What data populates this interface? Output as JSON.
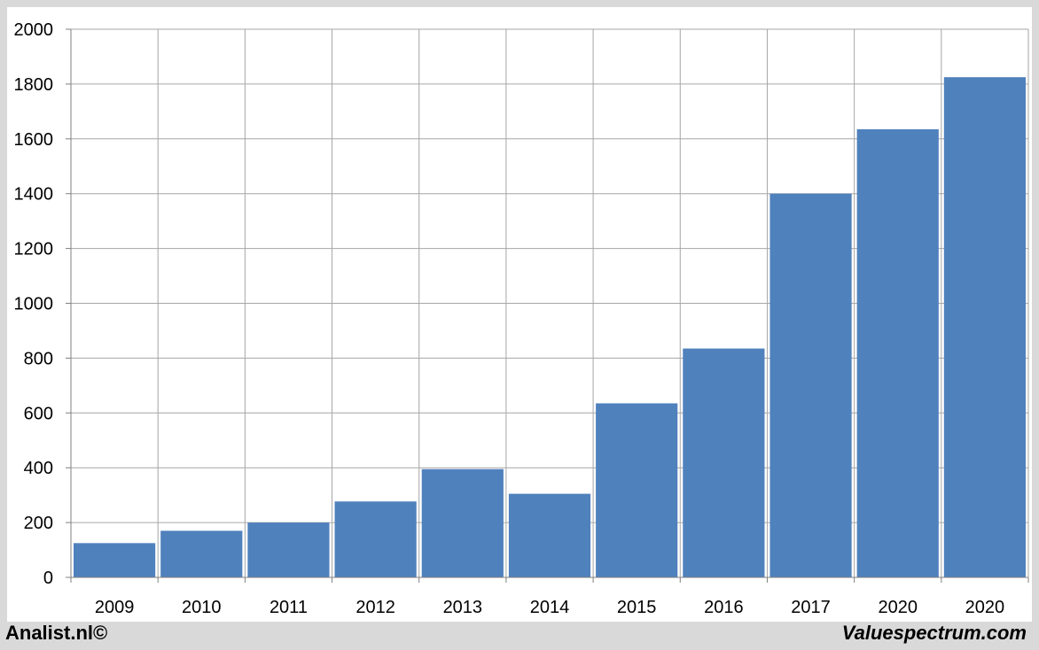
{
  "chart_data": {
    "type": "bar",
    "categories": [
      "2009",
      "2010",
      "2011",
      "2012",
      "2013",
      "2014",
      "2015",
      "2016",
      "2017",
      "2020",
      "2020"
    ],
    "values": [
      125,
      170,
      200,
      277,
      395,
      305,
      635,
      835,
      1400,
      1635,
      1825
    ],
    "ylim": [
      0,
      2000
    ],
    "yticks": [
      0,
      200,
      400,
      600,
      800,
      1000,
      1200,
      1400,
      1600,
      1800,
      2000
    ],
    "grid": true,
    "title": "",
    "xlabel": "",
    "ylabel": "",
    "bar_color": "#4f81bd",
    "grid_color": "#a6a6a6"
  },
  "footer": {
    "left": "Analist.nl©",
    "right": "Valuespectrum.com"
  }
}
